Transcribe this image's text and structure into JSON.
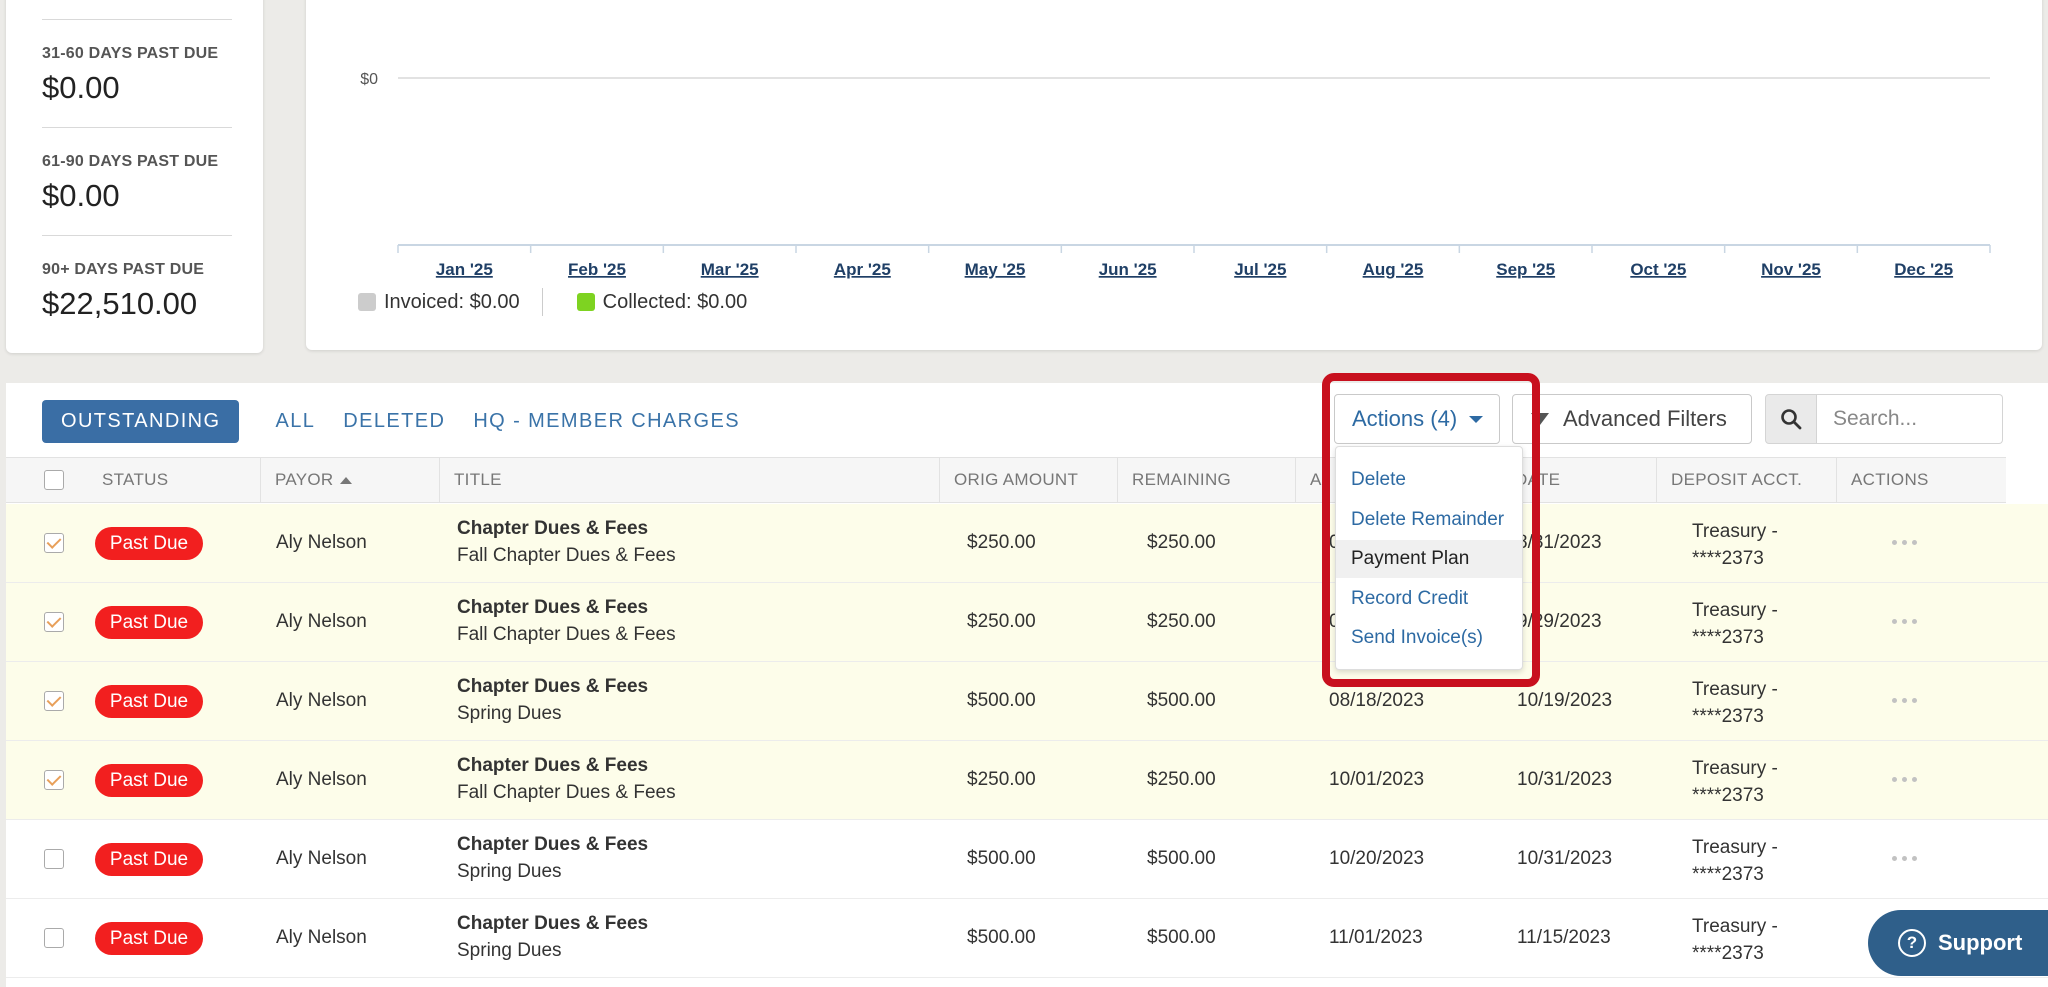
{
  "summary": {
    "items": [
      {
        "label": "31-60 DAYS PAST DUE",
        "value": "$0.00"
      },
      {
        "label": "61-90 DAYS PAST DUE",
        "value": "$0.00"
      },
      {
        "label": "90+ DAYS PAST DUE",
        "value": "$22,510.00"
      }
    ]
  },
  "chart_data": {
    "type": "bar",
    "categories": [
      "Jan '25",
      "Feb '25",
      "Mar '25",
      "Apr '25",
      "May '25",
      "Jun '25",
      "Jul '25",
      "Aug '25",
      "Sep '25",
      "Oct '25",
      "Nov '25",
      "Dec '25"
    ],
    "series": [
      {
        "name": "Invoiced: $0.00",
        "color": "#cccccc",
        "values": [
          0,
          0,
          0,
          0,
          0,
          0,
          0,
          0,
          0,
          0,
          0,
          0
        ]
      },
      {
        "name": "Collected: $0.00",
        "color": "#7ed321",
        "values": [
          0,
          0,
          0,
          0,
          0,
          0,
          0,
          0,
          0,
          0,
          0,
          0
        ]
      }
    ],
    "y_tick_labels": [
      "$0"
    ],
    "legend_position": "bottom-left"
  },
  "tabs": [
    {
      "label": "OUTSTANDING",
      "active": true
    },
    {
      "label": "ALL",
      "active": false
    },
    {
      "label": "DELETED",
      "active": false
    },
    {
      "label": "HQ - MEMBER CHARGES",
      "active": false
    }
  ],
  "toolbar": {
    "actions_label": "Actions (4)",
    "advanced_filters_label": "Advanced Filters",
    "search_placeholder": "Search..."
  },
  "dropdown": {
    "items": [
      "Delete",
      "Delete Remainder",
      "Payment Plan",
      "Record Credit",
      "Send Invoice(s)"
    ],
    "hovered": "Payment Plan"
  },
  "columns": [
    "STATUS",
    "PAYOR",
    "TITLE",
    "ORIG AMOUNT",
    "REMAINING",
    "A",
    "DATE",
    "DEPOSIT ACCT.",
    "ACTIONS"
  ],
  "rows": [
    {
      "checked": true,
      "status": "Past Due",
      "payor": "Aly Nelson",
      "title": "Chapter Dues & Fees",
      "subtitle": "Fall Chapter Dues & Fees",
      "orig": "$250.00",
      "remaining": "$250.00",
      "date1": "0",
      "date2": "8/31/2023",
      "acct1": "Treasury -",
      "acct2": "****2373"
    },
    {
      "checked": true,
      "status": "Past Due",
      "payor": "Aly Nelson",
      "title": "Chapter Dues & Fees",
      "subtitle": "Fall Chapter Dues & Fees",
      "orig": "$250.00",
      "remaining": "$250.00",
      "date1": "0",
      "date2": "9/29/2023",
      "acct1": "Treasury -",
      "acct2": "****2373"
    },
    {
      "checked": true,
      "status": "Past Due",
      "payor": "Aly Nelson",
      "title": "Chapter Dues & Fees",
      "subtitle": "Spring Dues",
      "orig": "$500.00",
      "remaining": "$500.00",
      "date1": "08/18/2023",
      "date2": "10/19/2023",
      "acct1": "Treasury -",
      "acct2": "****2373"
    },
    {
      "checked": true,
      "status": "Past Due",
      "payor": "Aly Nelson",
      "title": "Chapter Dues & Fees",
      "subtitle": "Fall Chapter Dues & Fees",
      "orig": "$250.00",
      "remaining": "$250.00",
      "date1": "10/01/2023",
      "date2": "10/31/2023",
      "acct1": "Treasury -",
      "acct2": "****2373"
    },
    {
      "checked": false,
      "status": "Past Due",
      "payor": "Aly Nelson",
      "title": "Chapter Dues & Fees",
      "subtitle": "Spring Dues",
      "orig": "$500.00",
      "remaining": "$500.00",
      "date1": "10/20/2023",
      "date2": "10/31/2023",
      "acct1": "Treasury -",
      "acct2": "****2373"
    },
    {
      "checked": false,
      "status": "Past Due",
      "payor": "Aly Nelson",
      "title": "Chapter Dues & Fees",
      "subtitle": "Spring Dues",
      "orig": "$500.00",
      "remaining": "$500.00",
      "date1": "11/01/2023",
      "date2": "11/15/2023",
      "acct1": "Treasury -",
      "acct2": "****2373"
    }
  ],
  "support": {
    "label": "Support",
    "icon": "question-icon"
  }
}
